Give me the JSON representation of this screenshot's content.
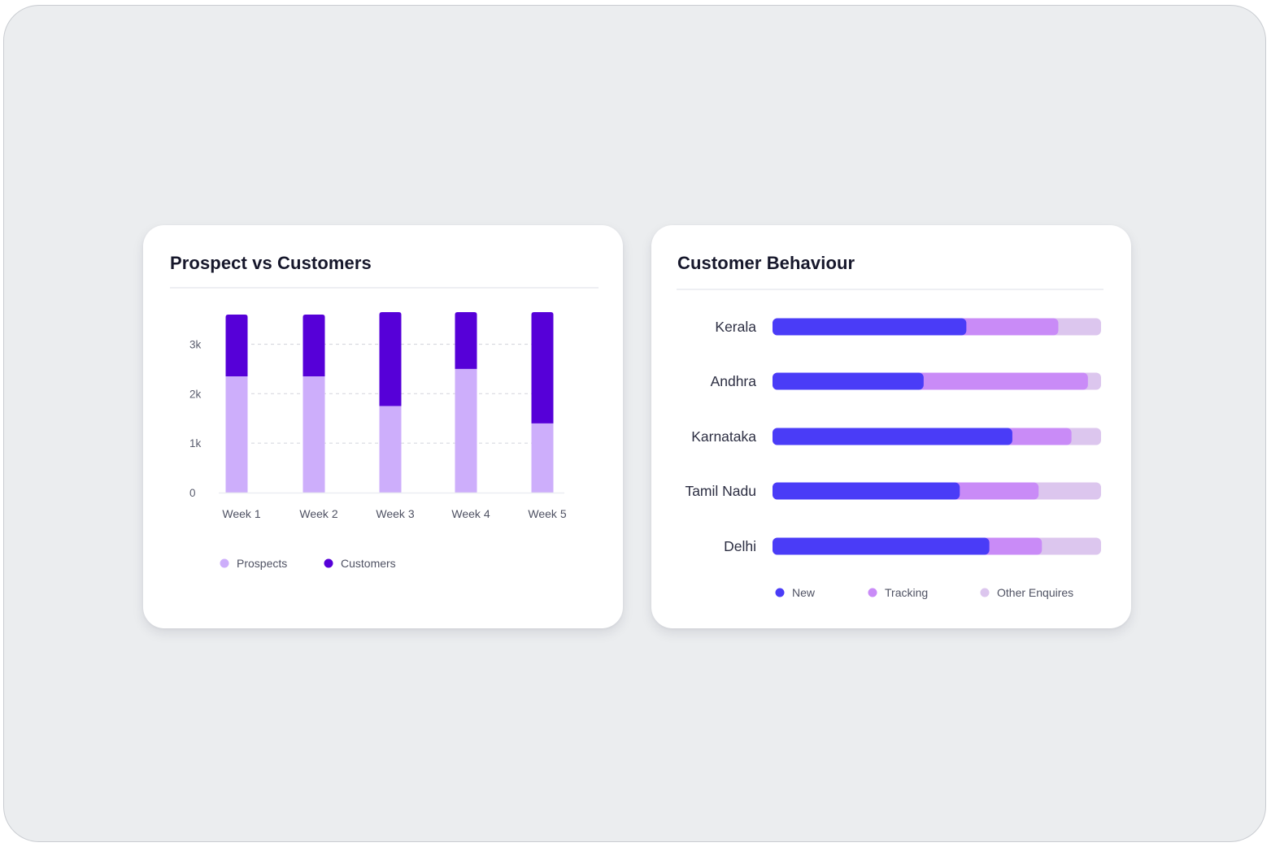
{
  "colors": {
    "prospects": "#cdaefb",
    "customers": "#5600d8",
    "new": "#4a3cf7",
    "tracking": "#c98bf7",
    "other_enquires": "#dcc6ee"
  },
  "chart_data": [
    {
      "type": "bar",
      "stacked": true,
      "title": "Prospect vs Customers",
      "categories": [
        "Week 1",
        "Week 2",
        "Week 3",
        "Week 4",
        "Week 5"
      ],
      "series": [
        {
          "name": "Prospects",
          "values": [
            2350,
            2350,
            1750,
            2500,
            1400
          ]
        },
        {
          "name": "Customers",
          "values": [
            1250,
            1250,
            1900,
            1150,
            2250
          ]
        }
      ],
      "yticks": [
        "0",
        "1k",
        "2k",
        "3k"
      ],
      "ytick_values": [
        0,
        1000,
        2000,
        3000
      ],
      "ylim": [
        0,
        3600
      ],
      "xlabel": "",
      "ylabel": "",
      "grid": true,
      "legend": "bottom-left"
    },
    {
      "type": "bar",
      "orientation": "horizontal",
      "stacked": true,
      "title": "Customer Behaviour",
      "categories": [
        "Kerala",
        "Andhra",
        "Karnataka",
        "Tamil Nadu",
        "Delhi"
      ],
      "series": [
        {
          "name": "New",
          "values": [
            59,
            46,
            73,
            57,
            66
          ]
        },
        {
          "name": "Tracking",
          "values": [
            28,
            50,
            18,
            24,
            16
          ]
        },
        {
          "name": "Other Enquires",
          "values": [
            13,
            4,
            9,
            19,
            18
          ]
        }
      ],
      "xlim": [
        0,
        100
      ],
      "legend": "bottom-center"
    }
  ]
}
